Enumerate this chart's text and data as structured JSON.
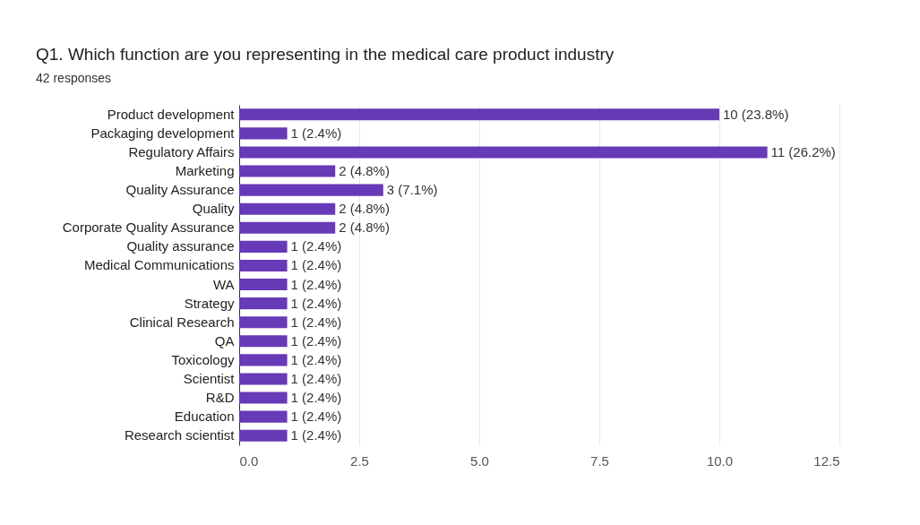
{
  "chart_data": {
    "type": "bar",
    "orientation": "horizontal",
    "title": "Q1.   Which function are you representing in the medical care product industry",
    "subtitle": "42 responses",
    "categories": [
      "Product development",
      "Packaging development",
      "Regulatory Affairs",
      "Marketing",
      "Quality Assurance",
      "Quality",
      "Corporate Quality Assurance",
      "Quality assurance",
      "Medical Communications",
      "WA",
      "Strategy",
      "Clinical Research",
      "QA",
      "Toxicology",
      "Scientist",
      "R&D",
      "Education",
      "Research scientist"
    ],
    "values": [
      10,
      1,
      11,
      2,
      3,
      2,
      2,
      1,
      1,
      1,
      1,
      1,
      1,
      1,
      1,
      1,
      1,
      1
    ],
    "value_labels": [
      "10 (23.8%)",
      "1 (2.4%)",
      "11 (26.2%)",
      "2 (4.8%)",
      "3 (7.1%)",
      "2 (4.8%)",
      "2 (4.8%)",
      "1 (2.4%)",
      "1 (2.4%)",
      "1 (2.4%)",
      "1 (2.4%)",
      "1 (2.4%)",
      "1 (2.4%)",
      "1 (2.4%)",
      "1 (2.4%)",
      "1 (2.4%)",
      "1 (2.4%)",
      "1 (2.4%)"
    ],
    "color": "#673ab7",
    "xlim": [
      0,
      12.5
    ],
    "xticks": [
      {
        "value": 0,
        "label": "0.0"
      },
      2.5,
      {
        "value": 5,
        "label": "5.0"
      },
      7.5,
      {
        "value": 10,
        "label": "10.0"
      },
      12.5
    ],
    "grid": "x"
  }
}
